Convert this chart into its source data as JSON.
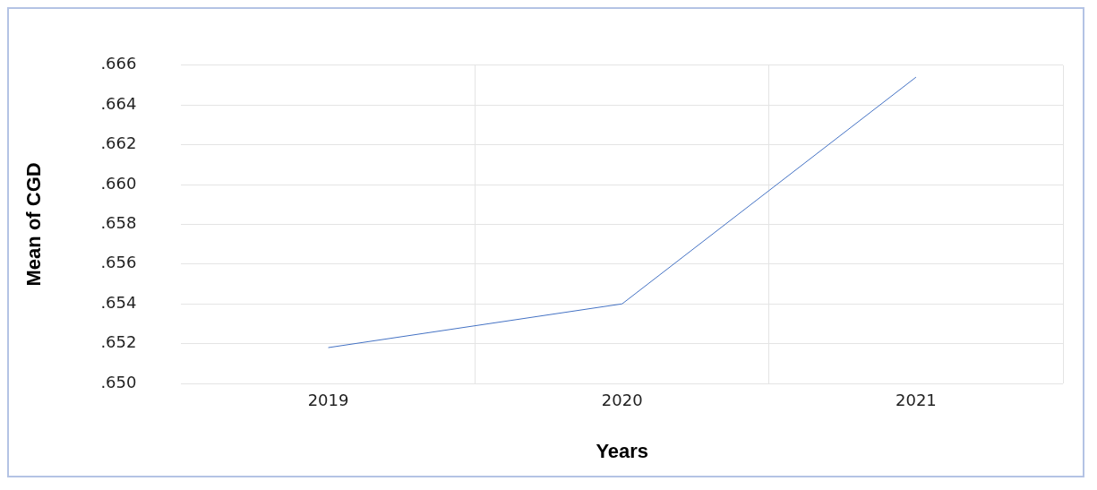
{
  "chart_data": {
    "type": "line",
    "xlabel": "Years",
    "ylabel": "Mean of CGD",
    "categories": [
      "2019",
      "2020",
      "2021"
    ],
    "series": [
      {
        "color": "#4472c4",
        "values": [
          0.6518,
          0.654,
          0.6654
        ]
      }
    ],
    "ylim": [
      0.65,
      0.666
    ],
    "yticks": [
      {
        "value": 0.65,
        "label": ".650"
      },
      {
        "value": 0.652,
        "label": ".652"
      },
      {
        "value": 0.654,
        "label": ".654"
      },
      {
        "value": 0.656,
        "label": ".656"
      },
      {
        "value": 0.658,
        "label": ".658"
      },
      {
        "value": 0.66,
        "label": ".660"
      },
      {
        "value": 0.662,
        "label": ".662"
      },
      {
        "value": 0.664,
        "label": ".664"
      },
      {
        "value": 0.666,
        "label": ".666"
      }
    ],
    "grid": true,
    "legend": false,
    "marker": "none",
    "line_style": "solid"
  }
}
